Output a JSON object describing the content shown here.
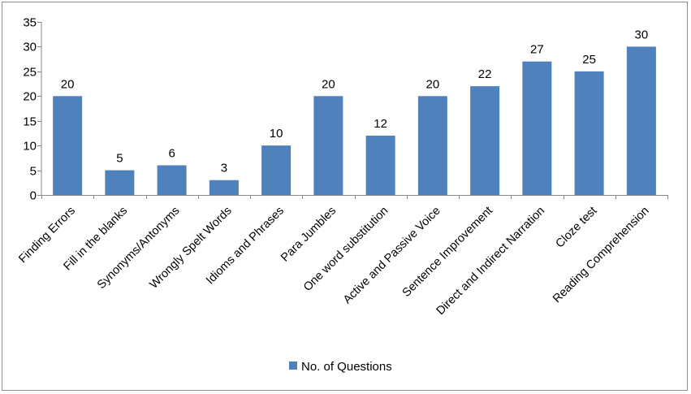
{
  "chart_data": {
    "type": "bar",
    "title": "",
    "xlabel": "",
    "ylabel": "",
    "ylim": [
      0,
      35
    ],
    "yticks": [
      0,
      5,
      10,
      15,
      20,
      25,
      30,
      35
    ],
    "grid": false,
    "legend_position": "bottom",
    "categories": [
      "Finding Errors",
      "Fill in the blanks",
      "Synonyms/Antonyms",
      "Wrongly Spelt Words",
      "Idioms and Phrases",
      "Para Jumbles",
      "One word substitution",
      "Active and Passive Voice",
      "Sentence Improvement",
      "Direct and Indirect Narration",
      "Cloze test",
      "Reading Comprehension"
    ],
    "series": [
      {
        "name": "No. of Questions",
        "color": "#4f81bd",
        "values": [
          20,
          5,
          6,
          3,
          10,
          20,
          12,
          20,
          22,
          27,
          25,
          30
        ]
      }
    ]
  }
}
